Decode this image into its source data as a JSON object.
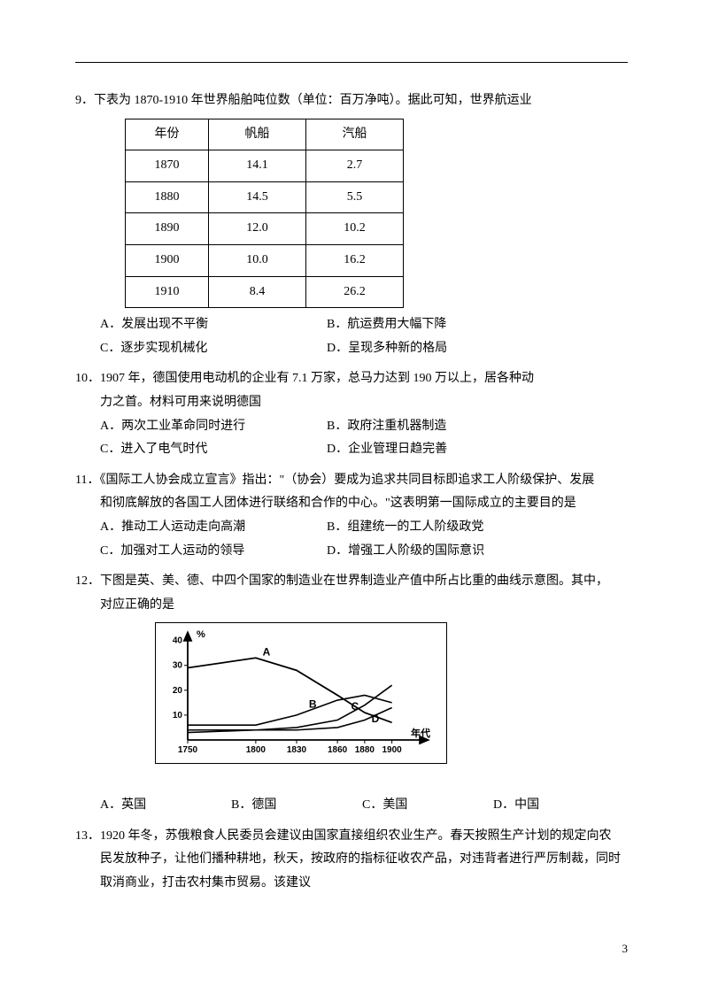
{
  "q9": {
    "stem": "9．下表为 1870-1910 年世界船舶吨位数（单位：百万净吨）。据此可知，世界航运业",
    "table": {
      "headers": [
        "年份",
        "帆船",
        "汽船"
      ],
      "rows": [
        [
          "1870",
          "14.1",
          "2.7"
        ],
        [
          "1880",
          "14.5",
          "5.5"
        ],
        [
          "1890",
          "12.0",
          "10.2"
        ],
        [
          "1900",
          "10.0",
          "16.2"
        ],
        [
          "1910",
          "8.4",
          "26.2"
        ]
      ]
    },
    "optA": "A．发展出现不平衡",
    "optB": "B．航运费用大幅下降",
    "optC": "C．逐步实现机械化",
    "optD": "D．呈现多种新的格局"
  },
  "q10": {
    "stem1": "10．1907 年，德国使用电动机的企业有 7.1 万家，总马力达到 190 万以上，居各种动",
    "stem2": "力之首。材料可用来说明德国",
    "optA": "A．两次工业革命同时进行",
    "optB": "B．政府注重机器制造",
    "optC": "C．进入了电气时代",
    "optD": "D．企业管理日趋完善"
  },
  "q11": {
    "stem1": "11．《国际工人协会成立宣言》指出：\"（协会）要成为追求共同目标即追求工人阶级保护、发展",
    "stem2": "和彻底解放的各国工人团体进行联络和合作的中心。\"这表明第一国际成立的主要目的是",
    "optA": "A．推动工人运动走向高潮",
    "optB": "B．组建统一的工人阶级政党",
    "optC": "C．加强对工人运动的领导",
    "optD": "D．增强工人阶级的国际意识"
  },
  "q12": {
    "stem1": "12．下图是英、美、德、中四个国家的制造业在世界制造业产值中所占比重的曲线示意图。其中，",
    "stem2": "对应正确的是",
    "chart": {
      "ylabel": "%",
      "xlabel": "年代",
      "yticks": [
        10,
        20,
        30,
        40
      ],
      "xticks": [
        1750,
        1800,
        1830,
        1860,
        1880,
        1900
      ],
      "series": [
        {
          "label": "A",
          "points": [
            [
              1750,
              29
            ],
            [
              1800,
              33
            ],
            [
              1830,
              28
            ],
            [
              1860,
              18
            ],
            [
              1880,
              11
            ],
            [
              1900,
              7
            ]
          ],
          "color": "#000",
          "width": 1.8
        },
        {
          "label": "B",
          "points": [
            [
              1750,
              6
            ],
            [
              1800,
              6
            ],
            [
              1830,
              10
            ],
            [
              1860,
              16
            ],
            [
              1880,
              18
            ],
            [
              1900,
              15
            ]
          ],
          "color": "#000",
          "width": 1.6
        },
        {
          "label": "C",
          "points": [
            [
              1750,
              3
            ],
            [
              1800,
              4
            ],
            [
              1830,
              5
            ],
            [
              1860,
              8
            ],
            [
              1880,
              14
            ],
            [
              1900,
              22
            ]
          ],
          "color": "#000",
          "width": 1.6
        },
        {
          "label": "D",
          "points": [
            [
              1750,
              4
            ],
            [
              1800,
              4
            ],
            [
              1830,
              4
            ],
            [
              1860,
              5
            ],
            [
              1880,
              8
            ],
            [
              1900,
              13
            ]
          ],
          "color": "#000",
          "width": 1.6
        }
      ],
      "label_positions": {
        "A": [
          1805,
          33
        ],
        "B": [
          1839,
          12
        ],
        "C": [
          1870,
          11
        ],
        "D": [
          1885,
          6
        ]
      },
      "xlim": [
        1750,
        1910
      ],
      "ylim": [
        0,
        42
      ],
      "tick_font_size": 10
    },
    "optA": "A．英国",
    "optB": "B．德国",
    "optC": "C．美国",
    "optD": "D．中国"
  },
  "q13": {
    "stem1": "13．1920 年冬，苏俄粮食人民委员会建议由国家直接组织农业生产。春天按照生产计划的规定向农",
    "stem2": "民发放种子，让他们播种耕地，秋天，按政府的指标征收农产品，对违背者进行严厉制裁，同时",
    "stem3": "取消商业，打击农村集市贸易。该建议"
  },
  "page_num": "3"
}
